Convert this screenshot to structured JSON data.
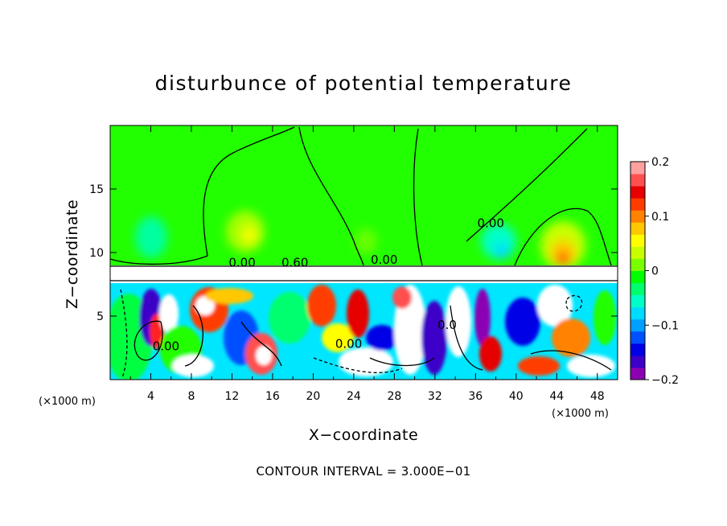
{
  "chart_data": {
    "type": "heatmap",
    "title": "disturbunce of potential temperature",
    "xlabel": "X−coordinate",
    "ylabel": "Z−coordinate",
    "x_unit": "(×1000 m)",
    "z_unit": "(×1000 m)",
    "xlim": [
      0,
      50
    ],
    "ylim": [
      0,
      20
    ],
    "x_ticks": [
      4,
      8,
      12,
      16,
      20,
      24,
      28,
      32,
      36,
      40,
      44,
      48
    ],
    "x_tick_labels": [
      "4",
      "8",
      "12",
      "16",
      "20",
      "24",
      "28",
      "32",
      "36",
      "40",
      "44",
      "48"
    ],
    "y_ticks": [
      5,
      10,
      15
    ],
    "y_tick_labels": [
      "5",
      "10",
      "15"
    ],
    "colorbar": {
      "range": [
        -0.2,
        0.2
      ],
      "ticks": [
        -0.2,
        -0.1,
        0,
        0.1,
        0.2
      ],
      "tick_labels": [
        "−0.2",
        "−0.1",
        "0",
        "0.1",
        "0.2"
      ],
      "colors": [
        "#8c00b4",
        "#3c00c8",
        "#0000e6",
        "#0050ff",
        "#00a0ff",
        "#00dcff",
        "#00ffc8",
        "#00ff6e",
        "#00ff00",
        "#78ff00",
        "#c8ff00",
        "#ffff00",
        "#ffc800",
        "#ff8200",
        "#ff3c00",
        "#e60000",
        "#ff5050",
        "#ffa0a0"
      ]
    },
    "contour_labels": [
      {
        "text": "0.00",
        "x": 27,
        "z": 9.1
      },
      {
        "text": "0.00",
        "x": 37.5,
        "z": 12.0
      },
      {
        "text": "0.00",
        "x": 23.5,
        "z": 2.5
      },
      {
        "text": "0.00",
        "x": 5.5,
        "z": 2.3
      },
      {
        "text": "0.60",
        "x": 18.2,
        "z": 8.9
      },
      {
        "text": "0.00",
        "x": 13,
        "z": 8.9
      },
      {
        "text": "0.0",
        "x": 33.2,
        "z": 4.0
      }
    ],
    "contour_interval_note": "CONTOUR INTERVAL = 3.000E−01"
  }
}
